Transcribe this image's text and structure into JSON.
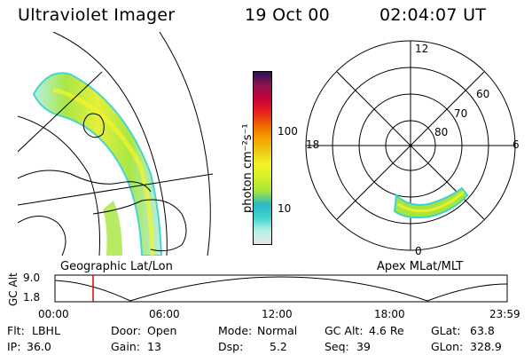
{
  "header": {
    "instrument": "Ultraviolet Imager",
    "date": "19 Oct 00",
    "time": "02:04:07 UT"
  },
  "geo_panel": {
    "caption": "Geographic Lat/Lon"
  },
  "colorbar": {
    "unit_label": "photon cm⁻²s⁻¹",
    "tick_labels": [
      "100",
      "10"
    ],
    "scale": "log",
    "colors": [
      "#e6e6e6",
      "#b4f0e6",
      "#3fd2cf",
      "#2fb6c4",
      "#a4e63c",
      "#d2ee28",
      "#f5f528",
      "#f0c814",
      "#f5a000",
      "#f06400",
      "#e61e1e",
      "#c8003c",
      "#8c1450",
      "#2a0f5a"
    ]
  },
  "polar_panel": {
    "caption": "Apex MLat/MLT",
    "mlt_labels": {
      "top": "12",
      "left": "18",
      "right": "6",
      "bottom": "0"
    },
    "lat_labels": [
      "60",
      "70",
      "80"
    ]
  },
  "altitude_plot": {
    "ylabel": "GC Alt",
    "y_ticks": [
      "9.0",
      "1.8"
    ],
    "x_ticks": [
      "00:00",
      "06:00",
      "12:00",
      "18:00",
      "23:59"
    ],
    "marker_color": "#e00000"
  },
  "info": {
    "row1": {
      "flt_label": "Flt:",
      "flt_value": "LBHL",
      "door_label": "Door:",
      "door_value": "Open",
      "mode_label": "Mode:",
      "mode_value": "Normal",
      "gcalt_label": "GC Alt:",
      "gcalt_value": "4.6 Re",
      "glat_label": "GLat:",
      "glat_value": "63.8"
    },
    "row2": {
      "ip_label": "IP:",
      "ip_value": "36.0",
      "gain_label": "Gain:",
      "gain_value": "13",
      "dsp_label": "Dsp:",
      "dsp_value": "5.2",
      "seq_label": "Seq:",
      "seq_value": "39",
      "glon_label": "GLon:",
      "glon_value": "328.9"
    }
  }
}
